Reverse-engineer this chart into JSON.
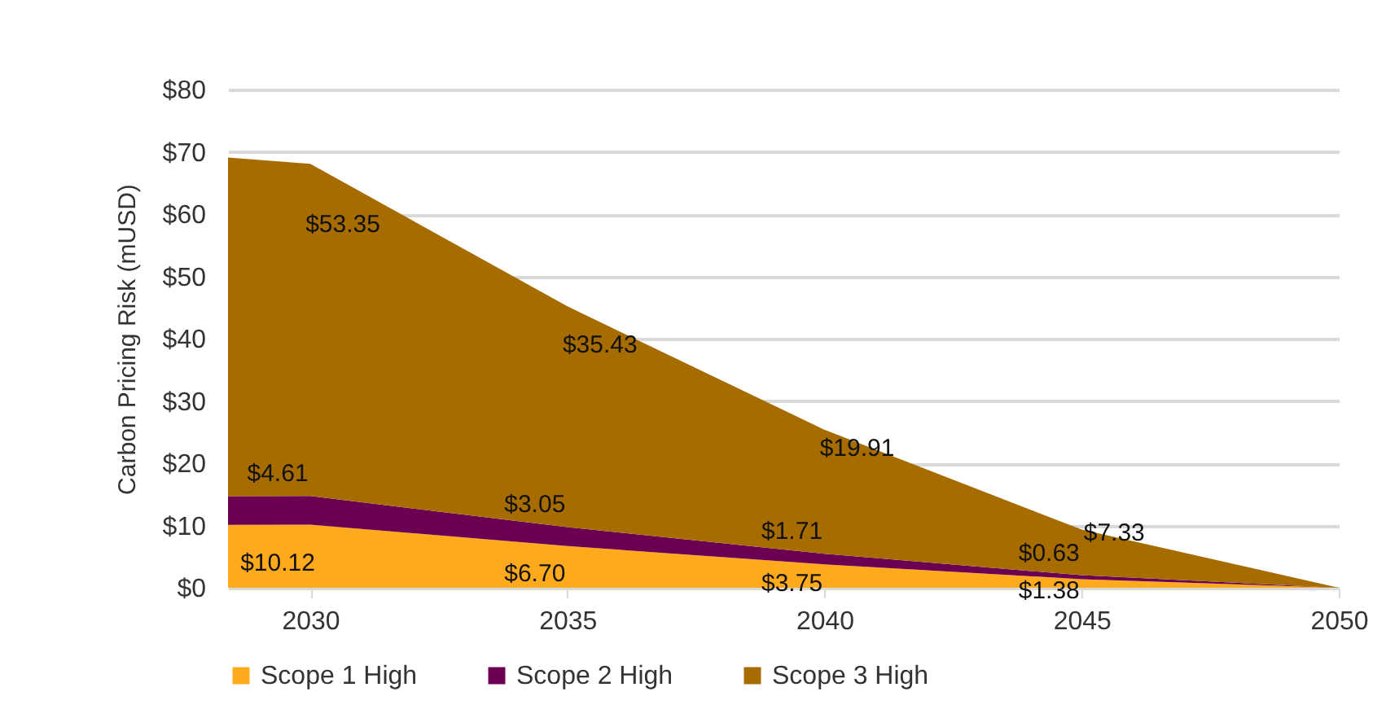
{
  "chart_data": {
    "type": "area",
    "stacked": true,
    "ylabel": "Carbon Pricing Risk (mUSD)",
    "x": [
      2028.4,
      2030,
      2035,
      2040,
      2045,
      2050
    ],
    "xlim": [
      2028.4,
      2050
    ],
    "xticks": [
      2030,
      2035,
      2040,
      2045,
      2050
    ],
    "ylim": [
      0,
      80
    ],
    "yticks": [
      {
        "value": 0,
        "label": "$0"
      },
      {
        "value": 10,
        "label": "$10"
      },
      {
        "value": 20,
        "label": "$20"
      },
      {
        "value": 30,
        "label": "$30"
      },
      {
        "value": 40,
        "label": "$40"
      },
      {
        "value": 50,
        "label": "$50"
      },
      {
        "value": 60,
        "label": "$60"
      },
      {
        "value": 70,
        "label": "$70"
      },
      {
        "value": 80,
        "label": "$80"
      }
    ],
    "grid": "y",
    "legend": "bottom",
    "series": [
      {
        "name": "Scope 1 High",
        "color": "#ffa91c",
        "values": [
          10.1,
          10.12,
          6.7,
          3.75,
          1.38,
          0
        ],
        "value_labels": [
          null,
          "$10.12",
          "$6.70",
          "$3.75",
          "$1.38",
          null
        ]
      },
      {
        "name": "Scope 2 High",
        "color": "#6b0052",
        "values": [
          4.6,
          4.61,
          3.05,
          1.71,
          0.63,
          0
        ],
        "value_labels": [
          null,
          "$4.61",
          "$3.05",
          "$1.71",
          "$0.63",
          null
        ]
      },
      {
        "name": "Scope 3 High",
        "color": "#a66c00",
        "values": [
          54.4,
          53.35,
          35.43,
          19.91,
          7.33,
          0
        ],
        "value_labels": [
          null,
          "$53.35",
          "$35.43",
          "$19.91",
          "$7.33",
          null
        ]
      }
    ]
  }
}
